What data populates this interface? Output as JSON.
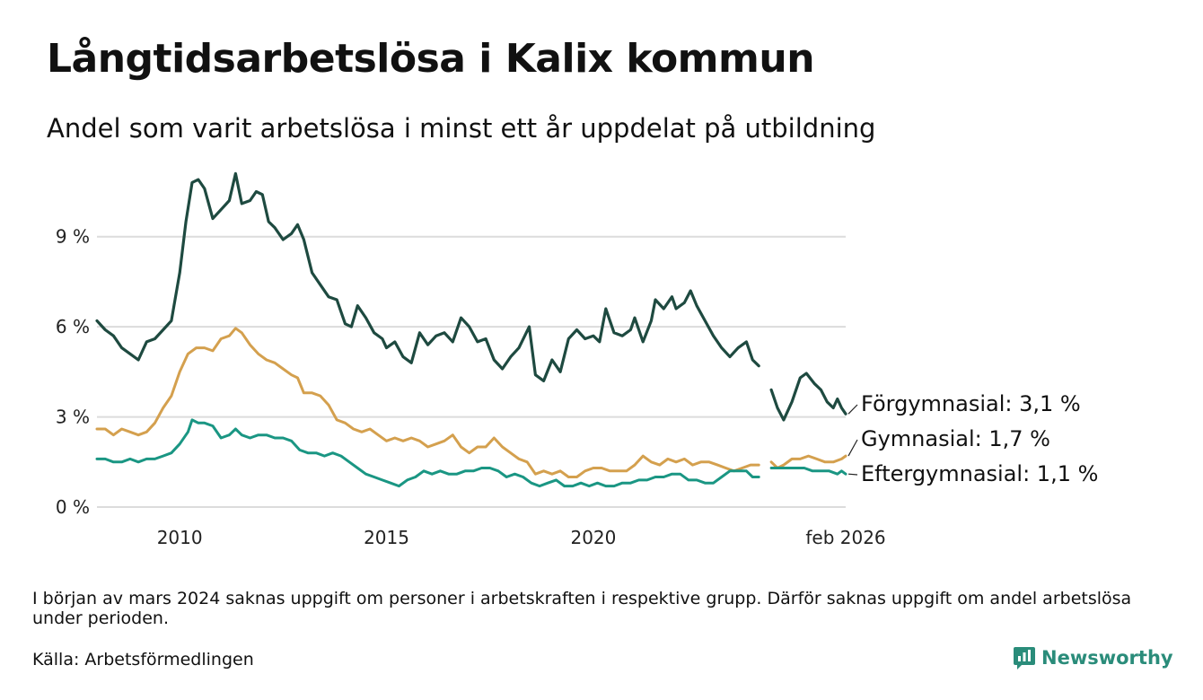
{
  "title": "Långtidsarbetslösa i Kalix kommun",
  "subtitle": "Andel som varit arbetslösa i minst ett år uppdelat på utbildning",
  "note": "I början av mars 2024 saknas uppgift om personer i arbetskraften i respektive grupp. Därför saknas uppgift om andel arbetslösa under perioden.",
  "source": "Källa: Arbetsförmedlingen",
  "brand": "Newsworthy",
  "colors": {
    "forgymnasial": "#1e4a40",
    "gymnasial": "#d4a04e",
    "eftergymnasial": "#1a9683",
    "grid": "#dcdcdc",
    "brand": "#2a8c7a"
  },
  "chart_data": {
    "type": "line",
    "title": "Långtidsarbetslösa i Kalix kommun",
    "xlabel": "",
    "ylabel": "",
    "xlim": [
      2008.0,
      2026.1
    ],
    "ylim": [
      0,
      11.5
    ],
    "y_ticks": [
      {
        "value": 0,
        "label": "0 %"
      },
      {
        "value": 3,
        "label": "3 %"
      },
      {
        "value": 6,
        "label": "6 %"
      },
      {
        "value": 9,
        "label": "9 %"
      }
    ],
    "x_ticks": [
      {
        "value": 2010.0,
        "label": "2010"
      },
      {
        "value": 2015.0,
        "label": "2015"
      },
      {
        "value": 2020.0,
        "label": "2020"
      },
      {
        "value": 2026.1,
        "label": "feb 2026"
      }
    ],
    "grid": true,
    "gap": {
      "start": 2024.0,
      "end": 2024.3
    },
    "series": [
      {
        "name": "Förgymnasial",
        "end_label": "Förgymnasial: 3,1 %",
        "color_key": "forgymnasial",
        "points": [
          [
            2008.0,
            6.2
          ],
          [
            2008.2,
            5.9
          ],
          [
            2008.4,
            5.7
          ],
          [
            2008.6,
            5.3
          ],
          [
            2008.8,
            5.1
          ],
          [
            2009.0,
            4.9
          ],
          [
            2009.2,
            5.5
          ],
          [
            2009.4,
            5.6
          ],
          [
            2009.6,
            5.9
          ],
          [
            2009.8,
            6.2
          ],
          [
            2010.0,
            7.8
          ],
          [
            2010.15,
            9.5
          ],
          [
            2010.3,
            10.8
          ],
          [
            2010.45,
            10.9
          ],
          [
            2010.6,
            10.6
          ],
          [
            2010.8,
            9.6
          ],
          [
            2011.0,
            9.9
          ],
          [
            2011.2,
            10.2
          ],
          [
            2011.35,
            11.1
          ],
          [
            2011.5,
            10.1
          ],
          [
            2011.7,
            10.2
          ],
          [
            2011.85,
            10.5
          ],
          [
            2012.0,
            10.4
          ],
          [
            2012.15,
            9.5
          ],
          [
            2012.3,
            9.3
          ],
          [
            2012.5,
            8.9
          ],
          [
            2012.7,
            9.1
          ],
          [
            2012.85,
            9.4
          ],
          [
            2013.0,
            8.9
          ],
          [
            2013.2,
            7.8
          ],
          [
            2013.4,
            7.4
          ],
          [
            2013.6,
            7.0
          ],
          [
            2013.8,
            6.9
          ],
          [
            2014.0,
            6.1
          ],
          [
            2014.15,
            6.0
          ],
          [
            2014.3,
            6.7
          ],
          [
            2014.5,
            6.3
          ],
          [
            2014.7,
            5.8
          ],
          [
            2014.9,
            5.6
          ],
          [
            2015.0,
            5.3
          ],
          [
            2015.2,
            5.5
          ],
          [
            2015.4,
            5.0
          ],
          [
            2015.6,
            4.8
          ],
          [
            2015.8,
            5.8
          ],
          [
            2016.0,
            5.4
          ],
          [
            2016.2,
            5.7
          ],
          [
            2016.4,
            5.8
          ],
          [
            2016.6,
            5.5
          ],
          [
            2016.8,
            6.3
          ],
          [
            2017.0,
            6.0
          ],
          [
            2017.2,
            5.5
          ],
          [
            2017.4,
            5.6
          ],
          [
            2017.6,
            4.9
          ],
          [
            2017.8,
            4.6
          ],
          [
            2018.0,
            5.0
          ],
          [
            2018.2,
            5.3
          ],
          [
            2018.45,
            6.0
          ],
          [
            2018.6,
            4.4
          ],
          [
            2018.8,
            4.2
          ],
          [
            2019.0,
            4.9
          ],
          [
            2019.2,
            4.5
          ],
          [
            2019.4,
            5.6
          ],
          [
            2019.6,
            5.9
          ],
          [
            2019.8,
            5.6
          ],
          [
            2020.0,
            5.7
          ],
          [
            2020.15,
            5.5
          ],
          [
            2020.3,
            6.6
          ],
          [
            2020.5,
            5.8
          ],
          [
            2020.7,
            5.7
          ],
          [
            2020.9,
            5.9
          ],
          [
            2021.0,
            6.3
          ],
          [
            2021.2,
            5.5
          ],
          [
            2021.4,
            6.2
          ],
          [
            2021.5,
            6.9
          ],
          [
            2021.7,
            6.6
          ],
          [
            2021.9,
            7.0
          ],
          [
            2022.0,
            6.6
          ],
          [
            2022.2,
            6.8
          ],
          [
            2022.35,
            7.2
          ],
          [
            2022.5,
            6.7
          ],
          [
            2022.7,
            6.2
          ],
          [
            2022.9,
            5.7
          ],
          [
            2023.1,
            5.3
          ],
          [
            2023.3,
            5.0
          ],
          [
            2023.5,
            5.3
          ],
          [
            2023.7,
            5.5
          ],
          [
            2023.85,
            4.9
          ],
          [
            2024.0,
            4.7
          ],
          [
            2024.3,
            3.9
          ],
          [
            2024.45,
            3.3
          ],
          [
            2024.6,
            2.9
          ],
          [
            2024.8,
            3.5
          ],
          [
            2025.0,
            4.3
          ],
          [
            2025.15,
            4.45
          ],
          [
            2025.35,
            4.1
          ],
          [
            2025.5,
            3.9
          ],
          [
            2025.65,
            3.5
          ],
          [
            2025.8,
            3.3
          ],
          [
            2025.9,
            3.6
          ],
          [
            2026.0,
            3.3
          ],
          [
            2026.1,
            3.1
          ]
        ]
      },
      {
        "name": "Gymnasial",
        "end_label": "Gymnasial: 1,7 %",
        "color_key": "gymnasial",
        "points": [
          [
            2008.0,
            2.6
          ],
          [
            2008.2,
            2.6
          ],
          [
            2008.4,
            2.4
          ],
          [
            2008.6,
            2.6
          ],
          [
            2008.8,
            2.5
          ],
          [
            2009.0,
            2.4
          ],
          [
            2009.2,
            2.5
          ],
          [
            2009.4,
            2.8
          ],
          [
            2009.6,
            3.3
          ],
          [
            2009.8,
            3.7
          ],
          [
            2010.0,
            4.5
          ],
          [
            2010.2,
            5.1
          ],
          [
            2010.4,
            5.3
          ],
          [
            2010.6,
            5.3
          ],
          [
            2010.8,
            5.2
          ],
          [
            2011.0,
            5.6
          ],
          [
            2011.2,
            5.7
          ],
          [
            2011.35,
            5.95
          ],
          [
            2011.5,
            5.8
          ],
          [
            2011.7,
            5.4
          ],
          [
            2011.9,
            5.1
          ],
          [
            2012.1,
            4.9
          ],
          [
            2012.3,
            4.8
          ],
          [
            2012.5,
            4.6
          ],
          [
            2012.7,
            4.4
          ],
          [
            2012.85,
            4.3
          ],
          [
            2013.0,
            3.8
          ],
          [
            2013.2,
            3.8
          ],
          [
            2013.4,
            3.7
          ],
          [
            2013.6,
            3.4
          ],
          [
            2013.8,
            2.9
          ],
          [
            2014.0,
            2.8
          ],
          [
            2014.2,
            2.6
          ],
          [
            2014.4,
            2.5
          ],
          [
            2014.6,
            2.6
          ],
          [
            2014.8,
            2.4
          ],
          [
            2015.0,
            2.2
          ],
          [
            2015.2,
            2.3
          ],
          [
            2015.4,
            2.2
          ],
          [
            2015.6,
            2.3
          ],
          [
            2015.8,
            2.2
          ],
          [
            2016.0,
            2.0
          ],
          [
            2016.2,
            2.1
          ],
          [
            2016.4,
            2.2
          ],
          [
            2016.6,
            2.4
          ],
          [
            2016.8,
            2.0
          ],
          [
            2017.0,
            1.8
          ],
          [
            2017.2,
            2.0
          ],
          [
            2017.4,
            2.0
          ],
          [
            2017.6,
            2.3
          ],
          [
            2017.8,
            2.0
          ],
          [
            2018.0,
            1.8
          ],
          [
            2018.2,
            1.6
          ],
          [
            2018.4,
            1.5
          ],
          [
            2018.6,
            1.1
          ],
          [
            2018.8,
            1.2
          ],
          [
            2019.0,
            1.1
          ],
          [
            2019.2,
            1.2
          ],
          [
            2019.4,
            1.0
          ],
          [
            2019.6,
            1.0
          ],
          [
            2019.8,
            1.2
          ],
          [
            2020.0,
            1.3
          ],
          [
            2020.2,
            1.3
          ],
          [
            2020.4,
            1.2
          ],
          [
            2020.6,
            1.2
          ],
          [
            2020.8,
            1.2
          ],
          [
            2021.0,
            1.4
          ],
          [
            2021.2,
            1.7
          ],
          [
            2021.4,
            1.5
          ],
          [
            2021.6,
            1.4
          ],
          [
            2021.8,
            1.6
          ],
          [
            2022.0,
            1.5
          ],
          [
            2022.2,
            1.6
          ],
          [
            2022.4,
            1.4
          ],
          [
            2022.6,
            1.5
          ],
          [
            2022.8,
            1.5
          ],
          [
            2023.0,
            1.4
          ],
          [
            2023.2,
            1.3
          ],
          [
            2023.4,
            1.2
          ],
          [
            2023.6,
            1.3
          ],
          [
            2023.8,
            1.4
          ],
          [
            2024.0,
            1.4
          ],
          [
            2024.3,
            1.5
          ],
          [
            2024.45,
            1.3
          ],
          [
            2024.6,
            1.4
          ],
          [
            2024.8,
            1.6
          ],
          [
            2025.0,
            1.6
          ],
          [
            2025.2,
            1.7
          ],
          [
            2025.4,
            1.6
          ],
          [
            2025.6,
            1.5
          ],
          [
            2025.8,
            1.5
          ],
          [
            2026.0,
            1.6
          ],
          [
            2026.1,
            1.7
          ]
        ]
      },
      {
        "name": "Eftergymnasial",
        "end_label": "Eftergymnasial: 1,1 %",
        "color_key": "eftergymnasial",
        "points": [
          [
            2008.0,
            1.6
          ],
          [
            2008.2,
            1.6
          ],
          [
            2008.4,
            1.5
          ],
          [
            2008.6,
            1.5
          ],
          [
            2008.8,
            1.6
          ],
          [
            2009.0,
            1.5
          ],
          [
            2009.2,
            1.6
          ],
          [
            2009.4,
            1.6
          ],
          [
            2009.6,
            1.7
          ],
          [
            2009.8,
            1.8
          ],
          [
            2010.0,
            2.1
          ],
          [
            2010.2,
            2.5
          ],
          [
            2010.3,
            2.9
          ],
          [
            2010.45,
            2.8
          ],
          [
            2010.6,
            2.8
          ],
          [
            2010.8,
            2.7
          ],
          [
            2011.0,
            2.3
          ],
          [
            2011.2,
            2.4
          ],
          [
            2011.35,
            2.6
          ],
          [
            2011.5,
            2.4
          ],
          [
            2011.7,
            2.3
          ],
          [
            2011.9,
            2.4
          ],
          [
            2012.1,
            2.4
          ],
          [
            2012.3,
            2.3
          ],
          [
            2012.5,
            2.3
          ],
          [
            2012.7,
            2.2
          ],
          [
            2012.9,
            1.9
          ],
          [
            2013.1,
            1.8
          ],
          [
            2013.3,
            1.8
          ],
          [
            2013.5,
            1.7
          ],
          [
            2013.7,
            1.8
          ],
          [
            2013.9,
            1.7
          ],
          [
            2014.1,
            1.5
          ],
          [
            2014.3,
            1.3
          ],
          [
            2014.5,
            1.1
          ],
          [
            2014.7,
            1.0
          ],
          [
            2014.9,
            0.9
          ],
          [
            2015.1,
            0.8
          ],
          [
            2015.3,
            0.7
          ],
          [
            2015.5,
            0.9
          ],
          [
            2015.7,
            1.0
          ],
          [
            2015.9,
            1.2
          ],
          [
            2016.1,
            1.1
          ],
          [
            2016.3,
            1.2
          ],
          [
            2016.5,
            1.1
          ],
          [
            2016.7,
            1.1
          ],
          [
            2016.9,
            1.2
          ],
          [
            2017.1,
            1.2
          ],
          [
            2017.3,
            1.3
          ],
          [
            2017.5,
            1.3
          ],
          [
            2017.7,
            1.2
          ],
          [
            2017.9,
            1.0
          ],
          [
            2018.1,
            1.1
          ],
          [
            2018.3,
            1.0
          ],
          [
            2018.5,
            0.8
          ],
          [
            2018.7,
            0.7
          ],
          [
            2018.9,
            0.8
          ],
          [
            2019.1,
            0.9
          ],
          [
            2019.3,
            0.7
          ],
          [
            2019.5,
            0.7
          ],
          [
            2019.7,
            0.8
          ],
          [
            2019.9,
            0.7
          ],
          [
            2020.1,
            0.8
          ],
          [
            2020.3,
            0.7
          ],
          [
            2020.5,
            0.7
          ],
          [
            2020.7,
            0.8
          ],
          [
            2020.9,
            0.8
          ],
          [
            2021.1,
            0.9
          ],
          [
            2021.3,
            0.9
          ],
          [
            2021.5,
            1.0
          ],
          [
            2021.7,
            1.0
          ],
          [
            2021.9,
            1.1
          ],
          [
            2022.1,
            1.1
          ],
          [
            2022.3,
            0.9
          ],
          [
            2022.5,
            0.9
          ],
          [
            2022.7,
            0.8
          ],
          [
            2022.9,
            0.8
          ],
          [
            2023.1,
            1.0
          ],
          [
            2023.3,
            1.2
          ],
          [
            2023.5,
            1.2
          ],
          [
            2023.7,
            1.2
          ],
          [
            2023.85,
            1.0
          ],
          [
            2024.0,
            1.0
          ],
          [
            2024.3,
            1.3
          ],
          [
            2024.5,
            1.3
          ],
          [
            2024.7,
            1.3
          ],
          [
            2024.9,
            1.3
          ],
          [
            2025.1,
            1.3
          ],
          [
            2025.3,
            1.2
          ],
          [
            2025.5,
            1.2
          ],
          [
            2025.7,
            1.2
          ],
          [
            2025.9,
            1.1
          ],
          [
            2026.0,
            1.2
          ],
          [
            2026.1,
            1.1
          ]
        ]
      }
    ]
  }
}
